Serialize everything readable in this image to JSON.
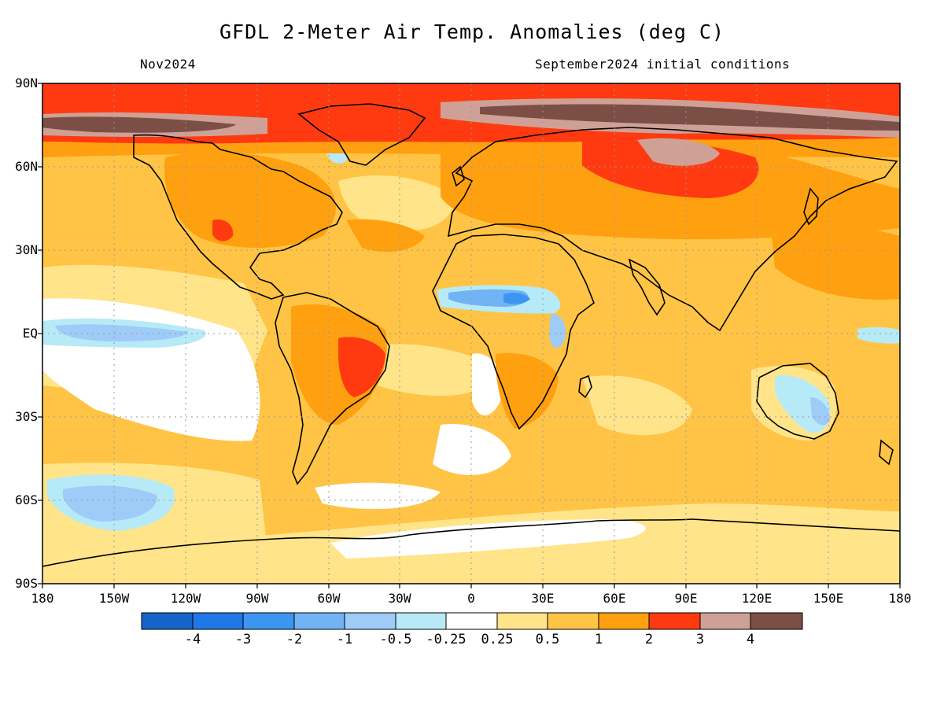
{
  "title": "GFDL 2-Meter Air Temp. Anomalies (deg C)",
  "subtitle_left": "Nov2024",
  "subtitle_right": "September2024 initial conditions",
  "lat_labels": [
    "90N",
    "60N",
    "30N",
    "EQ",
    "30S",
    "60S",
    "90S"
  ],
  "lon_labels": [
    "180",
    "150W",
    "120W",
    "90W",
    "60W",
    "30W",
    "0",
    "30E",
    "60E",
    "90E",
    "120E",
    "150E",
    "180"
  ],
  "colorbar": {
    "colors": [
      "#1565c8",
      "#1f78e6",
      "#3d95f2",
      "#72b3f5",
      "#9ecbf7",
      "#b7eaf7",
      "#ffffff",
      "#ffe48a",
      "#ffc445",
      "#ffa010",
      "#ff3a10",
      "#cfa196",
      "#7b4f45"
    ],
    "labels": [
      "-4",
      "-3",
      "-2",
      "-1",
      "-0.5",
      "-0.25",
      "0.25",
      "0.5",
      "1",
      "2",
      "3",
      "4"
    ]
  },
  "map_colors": {
    "base": "#ffc445",
    "light": "#ffe48a",
    "warm": "#ffa010",
    "hot": "#ff3a10",
    "very_hot": "#cfa196",
    "extreme": "#7b4f45",
    "neutral": "#ffffff",
    "cool": "#b7eaf7",
    "cold": "#9ecbf7",
    "colder": "#72b3f5",
    "coldest": "#3d95f2",
    "coast": "#000000",
    "grid": "#9a9a9a"
  }
}
